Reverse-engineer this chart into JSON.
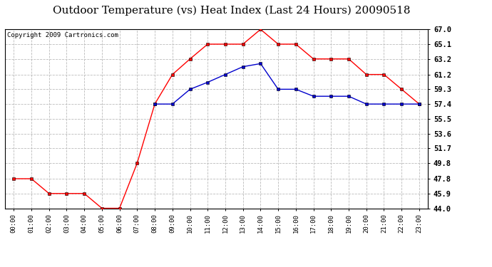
{
  "title": "Outdoor Temperature (vs) Heat Index (Last 24 Hours) 20090518",
  "copyright": "Copyright 2009 Cartronics.com",
  "x_labels": [
    "00:00",
    "01:00",
    "02:00",
    "03:00",
    "04:00",
    "05:00",
    "06:00",
    "07:00",
    "08:00",
    "09:00",
    "10:00",
    "11:00",
    "12:00",
    "13:00",
    "14:00",
    "15:00",
    "16:00",
    "17:00",
    "18:00",
    "19:00",
    "20:00",
    "21:00",
    "22:00",
    "23:00"
  ],
  "temp_data": [
    47.8,
    47.8,
    45.9,
    45.9,
    45.9,
    44.0,
    44.0,
    49.8,
    57.4,
    61.2,
    63.2,
    65.1,
    65.1,
    65.1,
    67.0,
    65.1,
    65.1,
    63.2,
    63.2,
    63.2,
    61.2,
    61.2,
    59.3,
    57.4
  ],
  "heat_data": [
    null,
    null,
    null,
    null,
    null,
    null,
    null,
    null,
    57.4,
    57.4,
    59.3,
    60.2,
    61.2,
    62.2,
    62.6,
    59.3,
    59.3,
    58.4,
    58.4,
    58.4,
    57.4,
    57.4,
    57.4,
    57.4
  ],
  "temp_color": "#FF0000",
  "heat_color": "#0000CC",
  "ylim_min": 44.0,
  "ylim_max": 67.0,
  "yticks": [
    44.0,
    45.9,
    47.8,
    49.8,
    51.7,
    53.6,
    55.5,
    57.4,
    59.3,
    61.2,
    63.2,
    65.1,
    67.0
  ],
  "background_color": "#FFFFFF",
  "plot_bg_color": "#FFFFFF",
  "grid_color": "#BBBBBB",
  "title_fontsize": 11,
  "copyright_fontsize": 6.5
}
